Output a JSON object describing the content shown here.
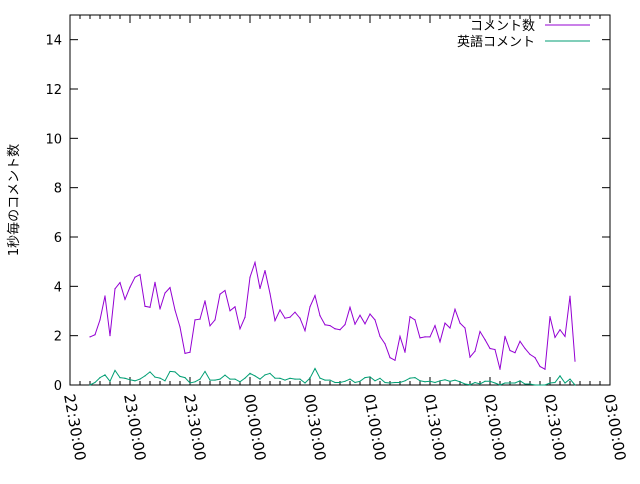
{
  "chart_data": {
    "type": "line",
    "title": "",
    "xlabel": "",
    "ylabel": "1秒毎のコメント数",
    "xlim": [
      "22:30:00",
      "03:00:00"
    ],
    "ylim": [
      0,
      15
    ],
    "grid": false,
    "legend_position": "top-right",
    "x_tick_labels": [
      "22:30:00",
      "23:00:00",
      "23:30:00",
      "00:00:00",
      "00:30:00",
      "01:00:00",
      "01:30:00",
      "02:00:00",
      "02:30:00",
      "03:00:00"
    ],
    "y_ticks": [
      0,
      2,
      4,
      6,
      8,
      10,
      12,
      14
    ],
    "x": [
      "22:40:00",
      "22:42:30",
      "22:45:00",
      "22:47:30",
      "22:50:00",
      "22:52:30",
      "22:55:00",
      "22:57:30",
      "23:00:00",
      "23:02:30",
      "23:05:00",
      "23:07:30",
      "23:10:00",
      "23:12:30",
      "23:15:00",
      "23:17:30",
      "23:20:00",
      "23:22:30",
      "23:25:00",
      "23:27:30",
      "23:30:00",
      "23:32:30",
      "23:35:00",
      "23:37:30",
      "23:40:00",
      "23:42:30",
      "23:45:00",
      "23:47:30",
      "23:50:00",
      "23:52:30",
      "23:55:00",
      "23:57:30",
      "00:00:00",
      "00:02:30",
      "00:05:00",
      "00:07:30",
      "00:10:00",
      "00:12:30",
      "00:15:00",
      "00:17:30",
      "00:20:00",
      "00:22:30",
      "00:25:00",
      "00:27:30",
      "00:30:00",
      "00:32:30",
      "00:35:00",
      "00:37:30",
      "00:40:00",
      "00:42:30",
      "00:45:00",
      "00:47:30",
      "00:50:00",
      "00:52:30",
      "00:55:00",
      "00:57:30",
      "01:00:00",
      "01:02:30",
      "01:05:00",
      "01:07:30",
      "01:10:00",
      "01:12:30",
      "01:15:00",
      "01:17:30",
      "01:20:00",
      "01:22:30",
      "01:25:00",
      "01:27:30",
      "01:30:00",
      "01:32:30",
      "01:35:00",
      "01:37:30",
      "01:40:00",
      "01:42:30",
      "01:45:00",
      "01:47:30",
      "01:50:00",
      "01:52:30",
      "01:55:00",
      "01:57:30",
      "02:00:00",
      "02:02:30",
      "02:05:00",
      "02:07:30",
      "02:10:00",
      "02:12:30",
      "02:15:00",
      "02:17:30",
      "02:20:00",
      "02:22:30",
      "02:25:00",
      "02:27:30",
      "02:30:00",
      "02:32:30",
      "02:35:00",
      "02:37:30",
      "02:40:00",
      "02:42:30"
    ],
    "series": [
      {
        "name": "コメント数",
        "color": "#9400d3",
        "values": [
          1.95,
          2.04,
          2.64,
          3.61,
          2.0,
          3.9,
          4.15,
          3.47,
          3.97,
          4.37,
          4.48,
          3.19,
          3.15,
          4.16,
          3.08,
          3.73,
          3.95,
          3.04,
          2.35,
          1.28,
          1.33,
          2.64,
          2.67,
          3.41,
          2.4,
          2.64,
          3.68,
          3.83,
          3.01,
          3.17,
          2.28,
          2.75,
          4.37,
          4.97,
          3.91,
          4.64,
          3.71,
          2.61,
          3.04,
          2.71,
          2.75,
          2.95,
          2.71,
          2.2,
          3.17,
          3.63,
          2.81,
          2.44,
          2.41,
          2.28,
          2.24,
          2.45,
          3.15,
          2.47,
          2.83,
          2.48,
          2.88,
          2.64,
          1.97,
          1.67,
          1.11,
          1.0,
          1.97,
          1.33,
          2.77,
          2.64,
          1.91,
          1.95,
          1.95,
          2.41,
          1.75,
          2.51,
          2.31,
          3.07,
          2.51,
          2.31,
          1.13,
          1.37,
          2.17,
          1.84,
          1.48,
          1.44,
          0.64,
          1.97,
          1.4,
          1.31,
          1.77,
          1.48,
          1.24,
          1.11,
          0.75,
          0.64,
          2.77,
          1.93,
          2.24,
          1.97,
          3.6,
          0.97
        ]
      },
      {
        "name": "英語コメント",
        "color": "#009e73",
        "values": [
          0,
          0.1,
          0.3,
          0.41,
          0.15,
          0.59,
          0.3,
          0.27,
          0.21,
          0.17,
          0.24,
          0.37,
          0.53,
          0.32,
          0.28,
          0.17,
          0.55,
          0.53,
          0.35,
          0.3,
          0.08,
          0.13,
          0.24,
          0.55,
          0.2,
          0.2,
          0.24,
          0.4,
          0.24,
          0.24,
          0.13,
          0.28,
          0.47,
          0.37,
          0.24,
          0.41,
          0.47,
          0.28,
          0.27,
          0.2,
          0.27,
          0.24,
          0.24,
          0.08,
          0.28,
          0.67,
          0.28,
          0.2,
          0.2,
          0.1,
          0.1,
          0.15,
          0.24,
          0.1,
          0.15,
          0.3,
          0.33,
          0.17,
          0.27,
          0.1,
          0.08,
          0.1,
          0.1,
          0.17,
          0.28,
          0.3,
          0.17,
          0.13,
          0.15,
          0.1,
          0.17,
          0.21,
          0.15,
          0.2,
          0.13,
          0.04,
          0.01,
          0.1,
          0.04,
          0.15,
          0.15,
          0.08,
          0,
          0.08,
          0.08,
          0.08,
          0.17,
          0.04,
          0.04,
          0,
          0,
          0,
          0.08,
          0.1,
          0.37,
          0.08,
          0.24,
          0
        ]
      }
    ]
  }
}
